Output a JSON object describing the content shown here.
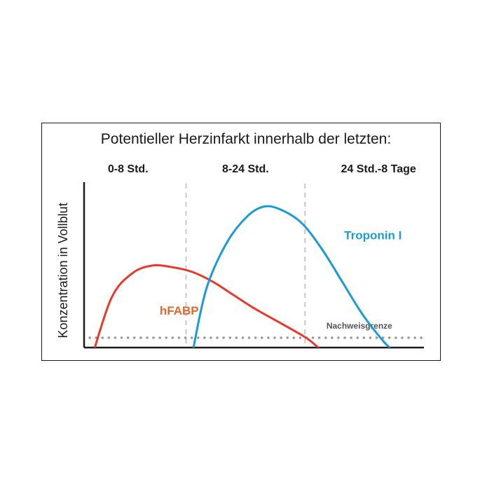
{
  "chart_data": {
    "type": "line",
    "title": "Potentieller Herzinfarkt innerhalb der letzten:",
    "ylabel": "Konzentration in Vollblut",
    "xlabel": "",
    "phases": [
      "0-8 Std.",
      "8-24 Std.",
      "24 Std.-8 Tage"
    ],
    "xlim": [
      0,
      100
    ],
    "ylim": [
      0,
      100
    ],
    "phase_boundaries": [
      30,
      65
    ],
    "grid": false,
    "series": [
      {
        "name": "hFABP",
        "color": "#e8392b",
        "label_color": "#e5662a",
        "points": [
          [
            2,
            -8
          ],
          [
            8,
            30
          ],
          [
            14,
            45
          ],
          [
            20,
            50
          ],
          [
            26,
            49
          ],
          [
            32,
            46
          ],
          [
            38,
            40
          ],
          [
            44,
            32
          ],
          [
            50,
            24
          ],
          [
            56,
            17
          ],
          [
            62,
            10
          ],
          [
            66,
            5
          ],
          [
            70,
            -2
          ]
        ]
      },
      {
        "name": "Troponin I",
        "color": "#1b9bd4",
        "label_color": "#1b9bd4",
        "points": [
          [
            32,
            -2
          ],
          [
            36,
            36
          ],
          [
            42,
            64
          ],
          [
            48,
            80
          ],
          [
            53,
            86
          ],
          [
            58,
            84
          ],
          [
            64,
            76
          ],
          [
            70,
            60
          ],
          [
            76,
            40
          ],
          [
            82,
            20
          ],
          [
            88,
            4
          ],
          [
            91,
            -2
          ]
        ]
      }
    ],
    "threshold": {
      "label": "Nachweisgrenze",
      "value": 6,
      "color": "#999999"
    }
  }
}
